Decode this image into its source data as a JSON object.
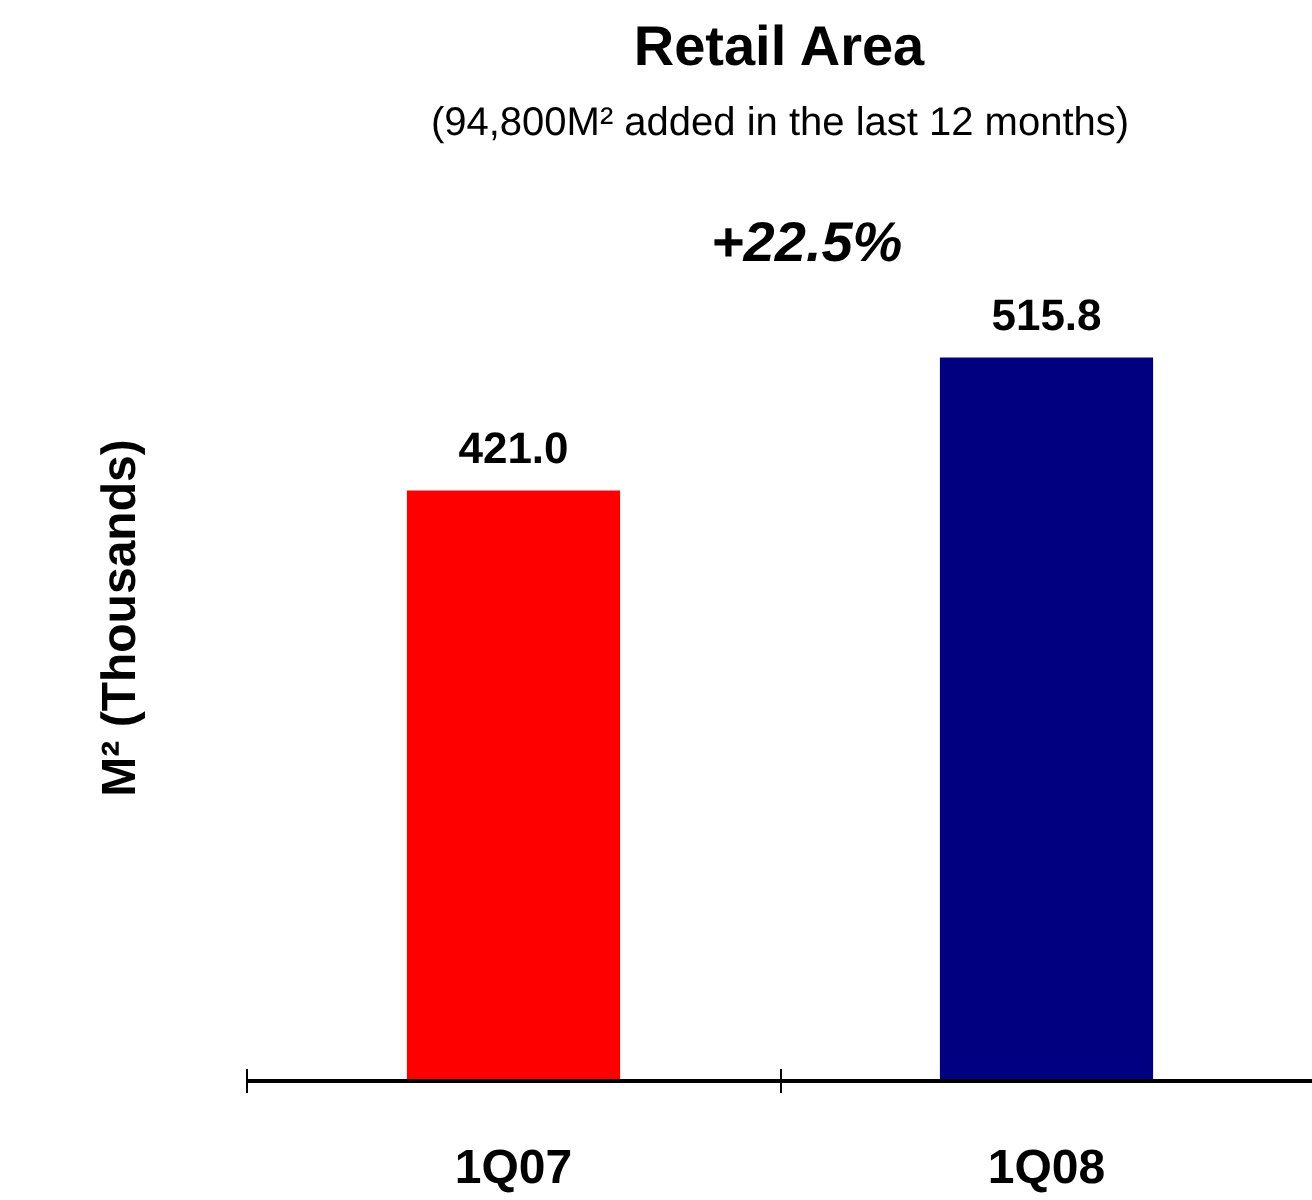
{
  "chart_data": {
    "type": "bar",
    "title": "Retail Area",
    "subtitle": "(94,800M² added in the last 12 months)",
    "ylabel": "M² (Thousands)",
    "categories": [
      "1Q07",
      "1Q08"
    ],
    "values": [
      421.0,
      515.8
    ],
    "colors": [
      "#ff0000",
      "#000080"
    ],
    "value_labels": [
      "421.0",
      "515.8"
    ],
    "annotations": [
      "+22.5%"
    ],
    "grid": false
  }
}
